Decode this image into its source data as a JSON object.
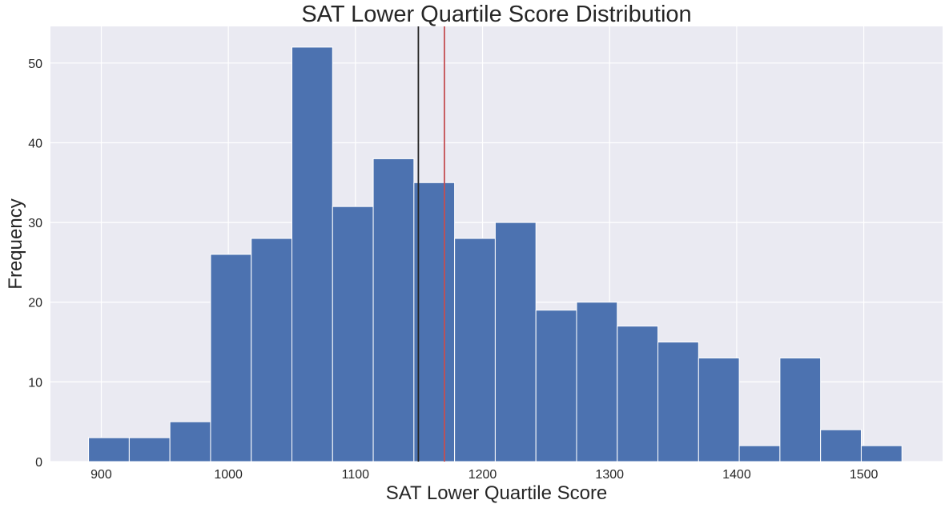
{
  "chart_data": {
    "type": "bar",
    "title": "SAT Lower Quartile Score Distribution",
    "xlabel": "SAT Lower Quartile Score",
    "ylabel": "Frequency",
    "xlim": [
      860,
      1562
    ],
    "ylim": [
      0,
      54.6
    ],
    "xticks": [
      900,
      1000,
      1100,
      1200,
      1300,
      1400,
      1500
    ],
    "yticks": [
      0,
      10,
      20,
      30,
      40,
      50
    ],
    "grid": true,
    "background_color": "#eaeaf2",
    "bar_color": "#4c72b0",
    "bins": [
      890,
      922,
      954,
      986,
      1018,
      1050,
      1082,
      1114,
      1146,
      1178,
      1210,
      1242,
      1274,
      1306,
      1338,
      1370,
      1402,
      1434,
      1466,
      1498,
      1530
    ],
    "counts": [
      3,
      3,
      5,
      26,
      28,
      52,
      32,
      38,
      35,
      28,
      30,
      19,
      20,
      17,
      15,
      13,
      2,
      13,
      4,
      2
    ],
    "reference_lines": [
      {
        "x": 1149.5,
        "color": "#262626"
      },
      {
        "x": 1170,
        "color": "#c44e52"
      }
    ]
  }
}
